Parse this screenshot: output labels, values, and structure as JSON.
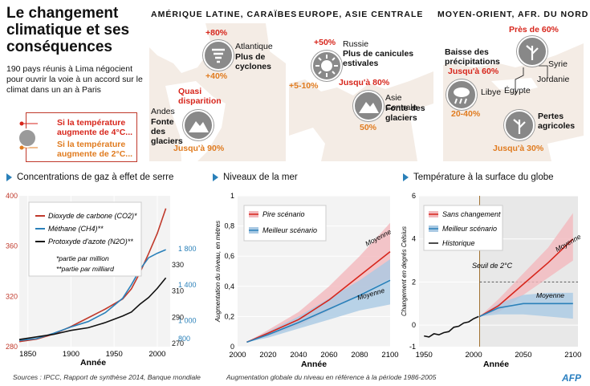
{
  "header": {
    "title": "Le changement climatique et ses conséquences",
    "subtitle": "190 pays réunis à Lima négocient pour ouvrir la voie à un accord sur le climat dans un an à Paris"
  },
  "legend": {
    "four": "Si la température augmente de 4°C...",
    "two": "Si la température augmente de 2°C..."
  },
  "regions": {
    "latam": {
      "title": "AMÉRIQUE LATINE, CARAÏBES",
      "atl_region": "Atlantique",
      "atl_desc": "Plus de cyclones",
      "atl_four": "+80%",
      "atl_two": "+40%",
      "andes_region": "Andes",
      "andes_desc": "Fonte des glaciers",
      "andes_four": "Quasi disparition",
      "andes_two": "Jusqu'à 90%"
    },
    "europe": {
      "title": "EUROPE, ASIE CENTRALE",
      "rus_region": "Russie",
      "rus_desc": "Plus de canicules estivales",
      "rus_four": "+50%",
      "rus_two": "+5-10%",
      "asia_region": "Asie Centrale",
      "asia_desc": "Fonte des glaciers",
      "asia_four": "Jusqu'à 80%",
      "asia_two": "50%"
    },
    "mena": {
      "title": "MOYEN-ORIENT, AFR. DU NORD",
      "rain_desc": "Baisse des précipitations",
      "rain_four": "Jusqu'à 60%",
      "rain_two": "20-40%",
      "agri_desc": "Pertes agricoles",
      "agri_four": "Près de 60%",
      "agri_two": "Jusqu'à 30%",
      "syrie": "Syrie",
      "jordanie": "Jordanie",
      "libye": "Libye",
      "egypte": "Égypte"
    }
  },
  "colors": {
    "red": "#d7261c",
    "orange": "#e07b1f",
    "blue": "#2a80b9",
    "dark": "#222222",
    "map": "#f4ece5"
  },
  "chart_data": [
    {
      "type": "line",
      "title": "Concentrations de gaz à effet de serre",
      "xlabel": "Année",
      "xlim": [
        1840,
        2015
      ],
      "x_ticks": [
        "1850",
        "1900",
        "1950",
        "2000"
      ],
      "left_ticks": [
        "400",
        "360",
        "320",
        "280"
      ],
      "right_ticks_blue": [
        "1 800",
        "1 400",
        "1 000",
        "800"
      ],
      "right_ticks_black": [
        "330",
        "310",
        "290",
        "270"
      ],
      "note1": "*partie par million",
      "note2": "**partie par milliard",
      "series": [
        {
          "name": "Dioxyde de carbone (CO2)*",
          "color": "#c0392b",
          "x": [
            1840,
            1860,
            1880,
            1900,
            1920,
            1940,
            1960,
            1970,
            1980,
            1990,
            2000,
            2010
          ],
          "y": [
            284,
            286,
            290,
            296,
            303,
            310,
            318,
            326,
            339,
            354,
            370,
            390
          ]
        },
        {
          "name": "Méthane (CH4)**",
          "color": "#2a80b9",
          "x": [
            1840,
            1860,
            1880,
            1900,
            1920,
            1940,
            1960,
            1970,
            1980,
            1990,
            2000,
            2010
          ],
          "y": [
            780,
            800,
            860,
            930,
            990,
            1090,
            1250,
            1400,
            1570,
            1700,
            1750,
            1790
          ]
        },
        {
          "name": "Protoxyde d'azote (N2O)**",
          "color": "#111111",
          "x": [
            1840,
            1860,
            1880,
            1900,
            1920,
            1940,
            1960,
            1970,
            1980,
            1990,
            2000,
            2010
          ],
          "y": [
            273,
            275,
            277,
            280,
            282,
            286,
            291,
            294,
            300,
            305,
            312,
            320
          ]
        }
      ]
    },
    {
      "type": "area",
      "title": "Niveaux de la mer",
      "xlabel": "Année",
      "ylabel": "Augmentation du niveau, en mètres",
      "xlim": [
        2000,
        2100
      ],
      "ylim": [
        0,
        1
      ],
      "x_ticks": [
        "2000",
        "2020",
        "2040",
        "2060",
        "2080",
        "2100"
      ],
      "y_ticks": [
        "0",
        "0,2",
        "0,4",
        "0,6",
        "0,8",
        "1"
      ],
      "series": [
        {
          "name": "Pire scénario",
          "color": "#d7261c",
          "label": "Moyenne",
          "x": [
            2006,
            2020,
            2040,
            2060,
            2080,
            2100
          ],
          "y": [
            0.03,
            0.09,
            0.18,
            0.31,
            0.47,
            0.63
          ],
          "lo": [
            0.03,
            0.07,
            0.14,
            0.24,
            0.35,
            0.45
          ],
          "hi": [
            0.03,
            0.11,
            0.23,
            0.4,
            0.6,
            0.82
          ]
        },
        {
          "name": "Meilleur scénario",
          "color": "#2a80b9",
          "label": "Moyenne",
          "x": [
            2006,
            2020,
            2040,
            2060,
            2080,
            2100
          ],
          "y": [
            0.03,
            0.08,
            0.16,
            0.25,
            0.34,
            0.44
          ],
          "lo": [
            0.03,
            0.06,
            0.12,
            0.18,
            0.24,
            0.28
          ],
          "hi": [
            0.03,
            0.1,
            0.2,
            0.32,
            0.44,
            0.58
          ]
        }
      ],
      "caption": "Augmentation globale du niveau en référence à la période 1986-2005"
    },
    {
      "type": "area",
      "title": "Température à la surface du globe",
      "xlabel": "Année",
      "ylabel": "Changement en degrés Celsius",
      "xlim": [
        1950,
        2100
      ],
      "ylim": [
        -1,
        6
      ],
      "x_ticks": [
        "1950",
        "2000",
        "2050",
        "2100"
      ],
      "y_ticks": [
        "-1",
        "0",
        "2",
        "4",
        "6"
      ],
      "threshold": {
        "label": "Seuil de 2°C",
        "value": 2
      },
      "series": [
        {
          "name": "Sans changement",
          "color": "#d7261c",
          "label": "Moyenne",
          "x": [
            2006,
            2025,
            2050,
            2075,
            2100
          ],
          "y": [
            0.4,
            0.9,
            1.9,
            2.9,
            4.0
          ],
          "lo": [
            0.4,
            0.6,
            1.4,
            2.2,
            3.0
          ],
          "hi": [
            0.4,
            1.2,
            2.4,
            3.6,
            5.2
          ]
        },
        {
          "name": "Meilleur scénario",
          "color": "#2a80b9",
          "label": "Moyenne",
          "x": [
            2006,
            2025,
            2050,
            2075,
            2100
          ],
          "y": [
            0.4,
            0.8,
            1.0,
            1.0,
            1.0
          ],
          "lo": [
            0.4,
            0.5,
            0.5,
            0.4,
            0.3
          ],
          "hi": [
            0.4,
            1.0,
            1.4,
            1.5,
            1.5
          ]
        },
        {
          "name": "Historique",
          "color": "#111111",
          "x": [
            1950,
            1955,
            1960,
            1965,
            1970,
            1975,
            1980,
            1985,
            1990,
            1995,
            2000,
            2005
          ],
          "y": [
            -0.5,
            -0.55,
            -0.4,
            -0.45,
            -0.35,
            -0.3,
            -0.1,
            -0.05,
            0.1,
            0.15,
            0.3,
            0.4
          ]
        }
      ]
    }
  ],
  "footer": {
    "sources": "Sources : IPCC, Rapport de synthèse 2014, Banque mondiale",
    "logo": "AFP"
  }
}
